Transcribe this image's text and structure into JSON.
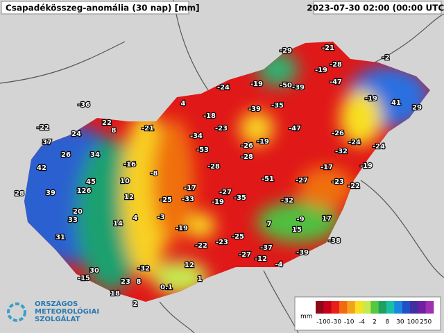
{
  "header": {
    "title": "Csapadékösszeg-anomália (30 nap) [mm]",
    "timestamp": "2023-07-30 02:00 (00:00 UTC)"
  },
  "stations": [
    -29,
    -21,
    -2,
    -19,
    -28,
    -24,
    -19,
    -50,
    -39,
    -47,
    -36,
    4,
    -39,
    -35,
    -19,
    41,
    29,
    -18,
    -22,
    22,
    8,
    -21,
    -23,
    -47,
    24,
    -34,
    -26,
    37,
    -26,
    -19,
    -24,
    -53,
    -32,
    -24,
    26,
    34,
    -28,
    42,
    -16,
    -28,
    -17,
    -19,
    -8,
    45,
    10,
    -51,
    -27,
    -23,
    -22,
    28,
    39,
    126,
    -17,
    -27,
    -35,
    12,
    -25,
    -33,
    -19,
    -32,
    20,
    33,
    4,
    -3,
    -9,
    17,
    14,
    7,
    15,
    -19,
    31,
    -25,
    -23,
    -22,
    -38,
    -37,
    -39,
    -27,
    -12,
    -4,
    30,
    -32,
    12,
    -15,
    23,
    8,
    1,
    0.1,
    18,
    2
  ],
  "legend": {
    "unit": "mm",
    "labels": [
      "-100",
      "-30",
      "-10",
      "-4",
      "2",
      "8",
      "30",
      "100",
      "250"
    ],
    "colors": [
      "#8b0a1a",
      "#c8001a",
      "#e8201a",
      "#f06a10",
      "#f4a21a",
      "#f8e020",
      "#c8e850",
      "#54c840",
      "#20a060",
      "#18c0a8",
      "#1a88e0",
      "#2050c8",
      "#4030a0",
      "#7020a0",
      "#a030b0"
    ]
  },
  "logo": {
    "line1": "ORSZÁGOS",
    "line2": "METEOROLÓGIAI",
    "line3": "SZOLGÁLAT"
  }
}
